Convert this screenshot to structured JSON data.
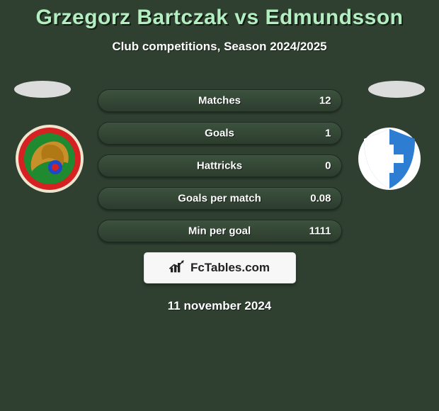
{
  "title_color": "#b3eec1",
  "text_color": "#ffffff",
  "background_color": "#2f4031",
  "header": {
    "title": "Grzegorz Bartczak vs Edmundsson",
    "subtitle": "Club competitions, Season 2024/2025"
  },
  "left_team": {
    "ellipse_color": "#dcdcdc",
    "logo": {
      "outer": "#efe6cf",
      "stripes": [
        "#d52121",
        "#1f8a30",
        "#d52121",
        "#1f8a30"
      ],
      "center": "#c7902a"
    }
  },
  "right_team": {
    "ellipse_color": "#dcdcdc",
    "logo": {
      "shield": "#2d7dd2",
      "accent": "#ffffff"
    }
  },
  "stats": {
    "row_bg": "#2a3a2c",
    "row_fill_from": "#3f5641",
    "row_fill_to": "#2d3d2e",
    "rows": [
      {
        "label": "Matches",
        "value": "12",
        "right_fill_pct": 100
      },
      {
        "label": "Goals",
        "value": "1",
        "right_fill_pct": 100
      },
      {
        "label": "Hattricks",
        "value": "0",
        "right_fill_pct": 100
      },
      {
        "label": "Goals per match",
        "value": "0.08",
        "right_fill_pct": 100
      },
      {
        "label": "Min per goal",
        "value": "1111",
        "right_fill_pct": 100
      }
    ]
  },
  "branding": {
    "text": "FcTables.com",
    "box_bg": "#f7f7f7"
  },
  "date": "11 november 2024"
}
